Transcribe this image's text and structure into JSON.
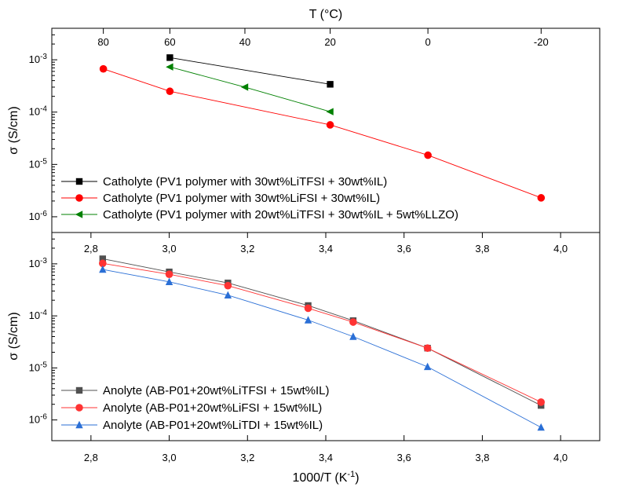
{
  "chart_data": [
    {
      "type": "line",
      "x_scale": "reciprocal",
      "top_axis_title": "T (°C)",
      "xlabel": "",
      "ylabel": "σ (S/cm)",
      "y_scale": "log",
      "ylim": [
        5e-07,
        0.004
      ],
      "xlim_T": [
        100,
        -40
      ],
      "x_ticks_top": [
        80,
        60,
        40,
        20,
        0,
        -20
      ],
      "y_ticks": [
        {
          "value": 0.001,
          "mantissa": "10",
          "exp": "-3"
        },
        {
          "value": 0.0001,
          "mantissa": "10",
          "exp": "-4"
        },
        {
          "value": 1e-05,
          "mantissa": "10",
          "exp": "-5"
        },
        {
          "value": 1e-06,
          "mantissa": "10",
          "exp": "-6"
        }
      ],
      "legend_position": "bottom-left",
      "series": [
        {
          "name": "Catholyte (PV1 polymer with 30wt%LiTFSI + 30wt%IL)",
          "color": "#000000",
          "marker": "square",
          "x": [
            60,
            20
          ],
          "y": [
            0.0011,
            0.00034
          ]
        },
        {
          "name": "Catholyte (PV1 polymer with 30wt%LiFSI + 30wt%IL)",
          "color": "#ff0000",
          "marker": "circle",
          "x": [
            80,
            60,
            20,
            0,
            -20
          ],
          "y": [
            0.00067,
            0.00025,
            5.7e-05,
            1.5e-05,
            2.3e-06
          ]
        },
        {
          "name": "Catholyte (PV1 polymer with 20wt%LiTFSI + 30wt%IL + 5wt%LLZO)",
          "color": "#008000",
          "marker": "triangle-left",
          "x": [
            60,
            40,
            20
          ],
          "y": [
            0.00073,
            0.0003,
            0.000102
          ]
        }
      ]
    },
    {
      "type": "line",
      "xlabel": "1000/T (K⁻¹)",
      "ylabel": "σ (S/cm)",
      "y_scale": "log",
      "xlim": [
        2.7,
        4.1
      ],
      "ylim": [
        4e-07,
        0.004
      ],
      "x_ticks": [
        "2,8",
        "3,0",
        "3,2",
        "3,4",
        "3,6",
        "3,8",
        "4,0"
      ],
      "x_tick_values": [
        2.8,
        3.0,
        3.2,
        3.4,
        3.6,
        3.8,
        4.0
      ],
      "y_ticks": [
        {
          "value": 0.001,
          "mantissa": "10",
          "exp": "-3"
        },
        {
          "value": 0.0001,
          "mantissa": "10",
          "exp": "-4"
        },
        {
          "value": 1e-05,
          "mantissa": "10",
          "exp": "-5"
        },
        {
          "value": 1e-06,
          "mantissa": "10",
          "exp": "-6"
        }
      ],
      "legend_position": "bottom-left",
      "series": [
        {
          "name": "Anolyte (AB-P01+20wt%LiTFSI + 15wt%IL)",
          "color": "#505050",
          "marker": "square",
          "x": [
            2.83,
            3.0,
            3.15,
            3.355,
            3.47,
            3.66,
            3.95
          ],
          "y": [
            0.00125,
            0.0007,
            0.00043,
            0.000158,
            8.1e-05,
            2.4e-05,
            1.9e-06
          ]
        },
        {
          "name": "Anolyte (AB-P01+20wt%LiFSI + 15wt%IL)",
          "color": "#ff3333",
          "marker": "circle",
          "x": [
            2.83,
            3.0,
            3.15,
            3.355,
            3.47,
            3.66,
            3.95
          ],
          "y": [
            0.00102,
            0.00063,
            0.00038,
            0.00014,
            7.6e-05,
            2.4e-05,
            2.2e-06
          ]
        },
        {
          "name": "Anolyte (AB-P01+20wt%LiTDI + 15wt%IL)",
          "color": "#2a6fd6",
          "marker": "triangle-up",
          "x": [
            2.83,
            3.0,
            3.15,
            3.355,
            3.47,
            3.66,
            3.95
          ],
          "y": [
            0.00078,
            0.00045,
            0.00025,
            8.3e-05,
            4e-05,
            1.05e-05,
            7.2e-07
          ]
        }
      ]
    }
  ]
}
